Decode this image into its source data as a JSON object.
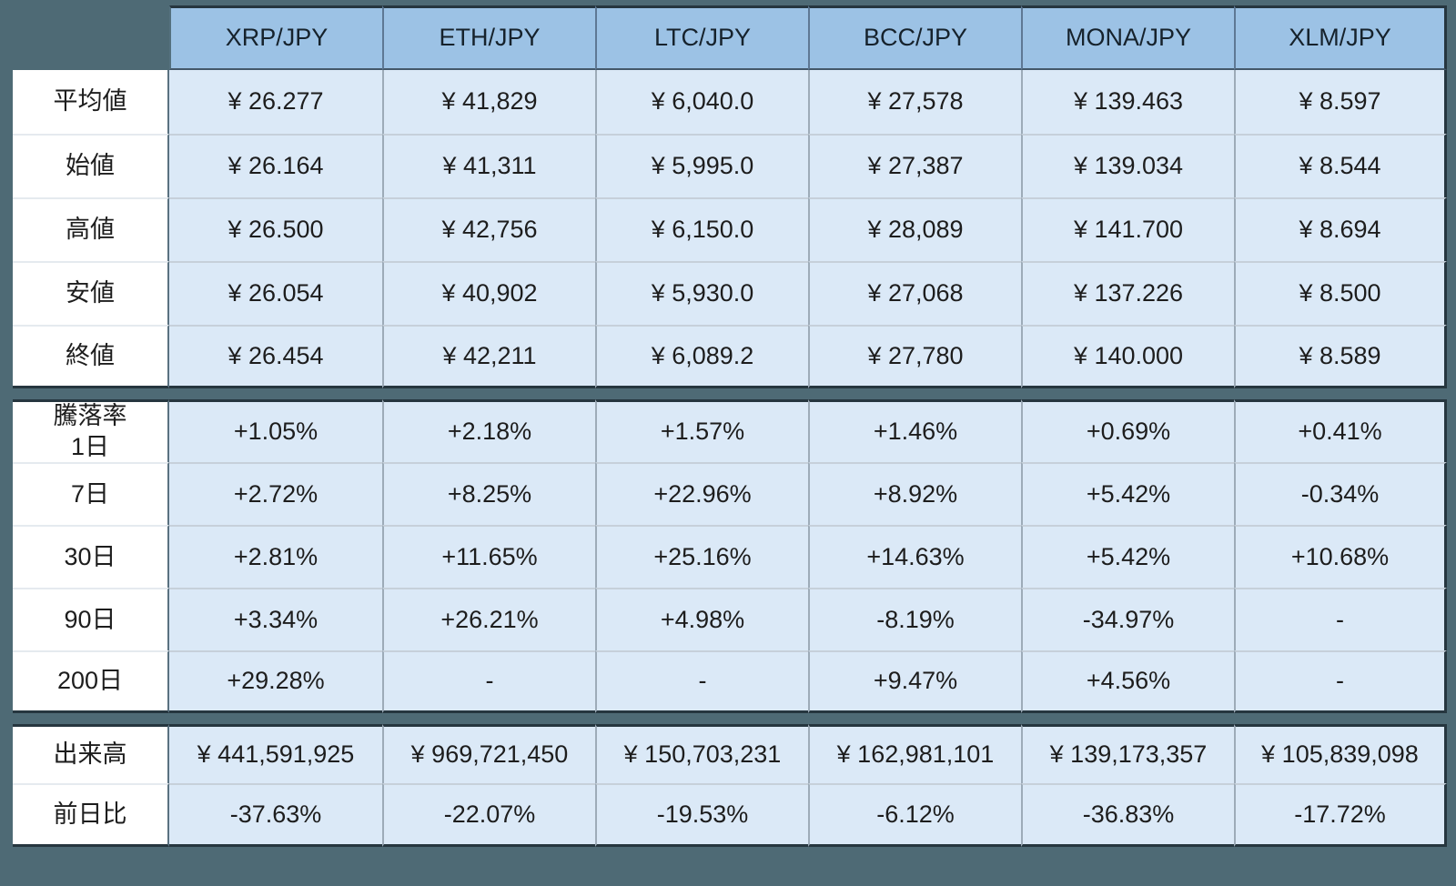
{
  "colors": {
    "page_background": "#4e6a75",
    "header_cell": "#9cc2e5",
    "data_cell": "#dbe9f7",
    "label_cell": "#ffffff",
    "section_border": "#26363f",
    "text": "#1d1d1d"
  },
  "chart_data": {
    "type": "table",
    "title": "",
    "columns": [
      "XRP/JPY",
      "ETH/JPY",
      "LTC/JPY",
      "BCC/JPY",
      "MONA/JPY",
      "XLM/JPY"
    ],
    "sections": [
      {
        "name": "prices",
        "rows": [
          {
            "label": "平均値",
            "values": [
              "¥ 26.277",
              "¥ 41,829",
              "¥ 6,040.0",
              "¥ 27,578",
              "¥ 139.463",
              "¥ 8.597"
            ]
          },
          {
            "label": "始値",
            "values": [
              "¥ 26.164",
              "¥ 41,311",
              "¥ 5,995.0",
              "¥ 27,387",
              "¥ 139.034",
              "¥ 8.544"
            ]
          },
          {
            "label": "高値",
            "values": [
              "¥ 26.500",
              "¥ 42,756",
              "¥ 6,150.0",
              "¥ 28,089",
              "¥ 141.700",
              "¥ 8.694"
            ]
          },
          {
            "label": "安値",
            "values": [
              "¥ 26.054",
              "¥ 40,902",
              "¥ 5,930.0",
              "¥ 27,068",
              "¥ 137.226",
              "¥ 8.500"
            ]
          },
          {
            "label": "終値",
            "values": [
              "¥ 26.454",
              "¥ 42,211",
              "¥ 6,089.2",
              "¥ 27,780",
              "¥ 140.000",
              "¥ 8.589"
            ]
          }
        ]
      },
      {
        "name": "change-rates",
        "rows": [
          {
            "label": "騰落率\n1日",
            "values": [
              "+1.05%",
              "+2.18%",
              "+1.57%",
              "+1.46%",
              "+0.69%",
              "+0.41%"
            ]
          },
          {
            "label": "7日",
            "values": [
              "+2.72%",
              "+8.25%",
              "+22.96%",
              "+8.92%",
              "+5.42%",
              "-0.34%"
            ]
          },
          {
            "label": "30日",
            "values": [
              "+2.81%",
              "+11.65%",
              "+25.16%",
              "+14.63%",
              "+5.42%",
              "+10.68%"
            ]
          },
          {
            "label": "90日",
            "values": [
              "+3.34%",
              "+26.21%",
              "+4.98%",
              "-8.19%",
              "-34.97%",
              "-"
            ]
          },
          {
            "label": "200日",
            "values": [
              "+29.28%",
              "-",
              "-",
              "+9.47%",
              "+4.56%",
              "-"
            ]
          }
        ]
      },
      {
        "name": "volume",
        "rows": [
          {
            "label": "出来高",
            "values": [
              "¥ 441,591,925",
              "¥ 969,721,450",
              "¥ 150,703,231",
              "¥ 162,981,101",
              "¥ 139,173,357",
              "¥ 105,839,098"
            ]
          },
          {
            "label": "前日比",
            "values": [
              "-37.63%",
              "-22.07%",
              "-19.53%",
              "-6.12%",
              "-36.83%",
              "-17.72%"
            ]
          }
        ]
      }
    ]
  }
}
